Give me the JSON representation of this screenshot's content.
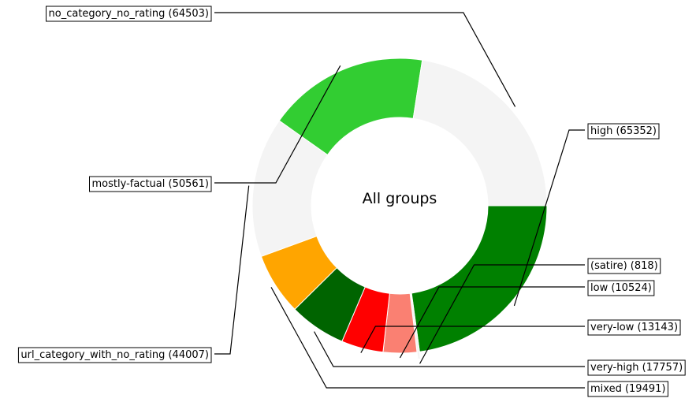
{
  "chart_data": {
    "type": "pie",
    "style": "donut",
    "title": "All groups",
    "slices": [
      {
        "label": "high (65352)",
        "name": "high",
        "value": 65352,
        "color": "#008000"
      },
      {
        "label": "(satire) (818)",
        "name": "(satire)",
        "value": 818,
        "color": "#f4f4f4"
      },
      {
        "label": "low (10524)",
        "name": "low",
        "value": 10524,
        "color": "#fa8072"
      },
      {
        "label": "very-low (13143)",
        "name": "very-low",
        "value": 13143,
        "color": "#ff0000"
      },
      {
        "label": "very-high (17757)",
        "name": "very-high",
        "value": 17757,
        "color": "#006400"
      },
      {
        "label": "mixed (19491)",
        "name": "mixed",
        "value": 19491,
        "color": "#ffa500"
      },
      {
        "label": "url_category_with_no_rating (44007)",
        "name": "url_category_with_no_rating",
        "value": 44007,
        "color": "#f4f4f4"
      },
      {
        "label": "mostly-factual (50561)",
        "name": "mostly-factual",
        "value": 50561,
        "color": "#32cd32"
      },
      {
        "label": "no_category_no_rating (64503)",
        "name": "no_category_no_rating",
        "value": 64503,
        "color": "#f4f4f4"
      }
    ]
  }
}
